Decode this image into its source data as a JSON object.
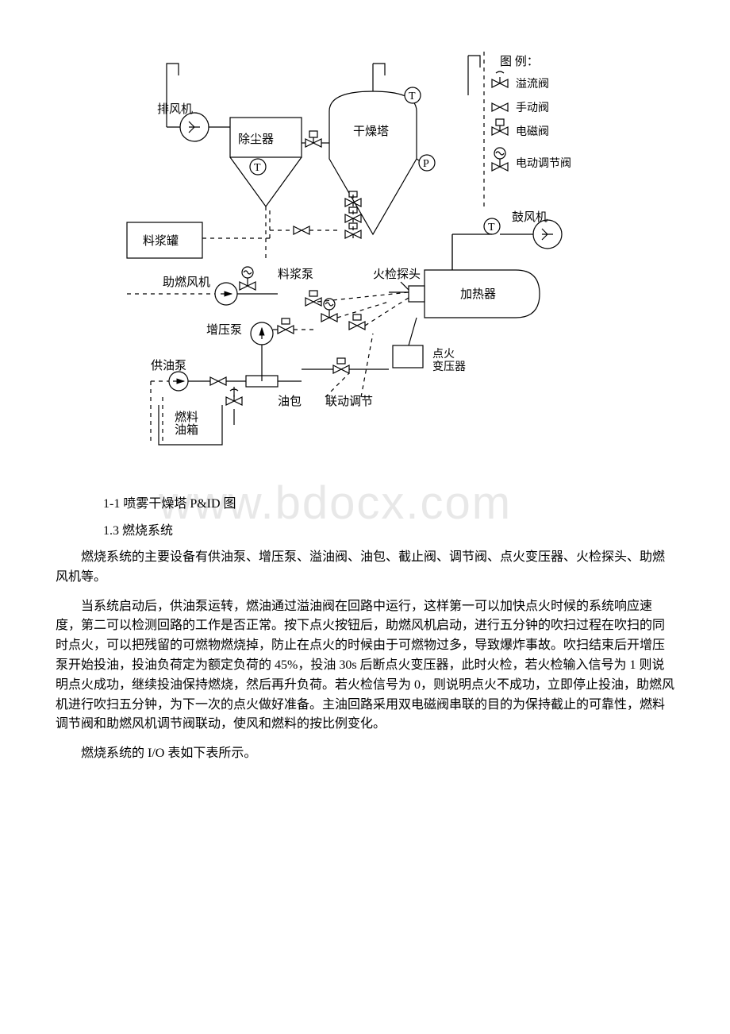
{
  "watermark": "www.bdocx.com",
  "diagram": {
    "legend_title": "图 例：",
    "legend_items": [
      {
        "label": "溢流阀",
        "icon": "overflow-valve"
      },
      {
        "label": "手动阀",
        "icon": "manual-valve"
      },
      {
        "label": "电磁阀",
        "icon": "solenoid-valve"
      },
      {
        "label": "电动调节阀",
        "icon": "motor-valve"
      }
    ],
    "labels": {
      "exhaust_fan": "排风机",
      "dust_collector": "除尘器",
      "drying_tower": "干燥塔",
      "blower": "鼓风机",
      "slurry_tank": "料浆罐",
      "slurry_pump": "料浆泵",
      "combustion_fan": "助燃风机",
      "booster_pump": "增压泵",
      "supply_pump": "供油泵",
      "fuel_tank": "燃料\n油箱",
      "oil_pack": "油包",
      "flame_probe": "火检探头",
      "heater": "加热器",
      "ignition_transformer": "点火\n变压器",
      "linkage": "联动调节"
    },
    "bubbles": [
      "T",
      "T",
      "T",
      "P",
      "T"
    ],
    "colors": {
      "stroke": "#000000",
      "background": "#ffffff"
    },
    "line_width": 1.2,
    "dash_pattern": "5 5"
  },
  "caption": "1-1 喷雾干燥塔 P&ID 图",
  "heading": "1.3 燃烧系统",
  "paragraphs": [
    "燃烧系统的主要设备有供油泵、增压泵、溢油阀、油包、截止阀、调节阀、点火变压器、火检探头、助燃风机等。",
    "当系统启动后，供油泵运转，燃油通过溢油阀在回路中运行，这样第一可以加快点火时候的系统响应速度，第二可以检测回路的工作是否正常。按下点火按钮后，助燃风机启动，进行五分钟的吹扫过程在吹扫的同时点火，可以把残留的可燃物燃烧掉，防止在点火的时候由于可燃物过多，导致爆炸事故。吹扫结束后开增压泵开始投油，投油负荷定为额定负荷的 45%，投油 30s 后断点火变压器，此时火检，若火检输入信号为 1 则说明点火成功，继续投油保持燃烧，然后再升负荷。若火检信号为 0，则说明点火不成功，立即停止投油，助燃风机进行吹扫五分钟，为下一次的点火做好准备。主油回路采用双电磁阀串联的目的为保持截止的可靠性，燃料调节阀和助燃风机调节阀联动，使风和燃料的按比例变化。",
    "燃烧系统的 I/O 表如下表所示。"
  ]
}
